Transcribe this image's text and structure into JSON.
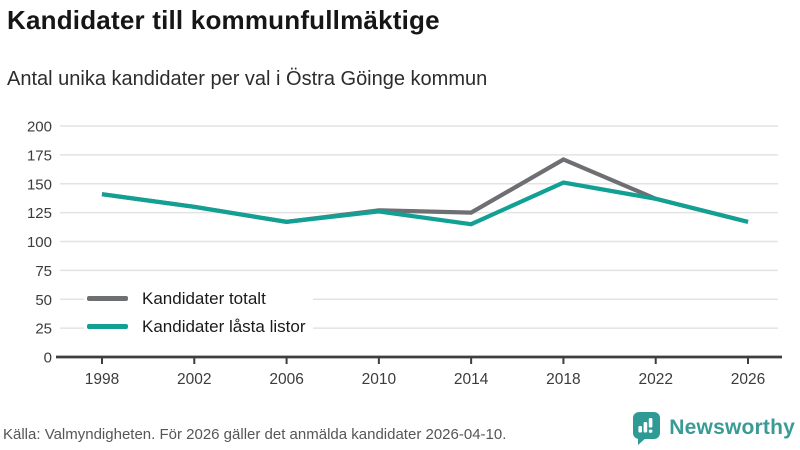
{
  "header": {
    "title": "Kandidater till kommunfullmäktige",
    "subtitle": "Antal unika kandidater per val i Östra Göinge kommun"
  },
  "chart_data": {
    "type": "line",
    "title": "Kandidater till kommunfullmäktige",
    "subtitle": "Antal unika kandidater per val i Östra Göinge kommun",
    "x": [
      1998,
      2002,
      2006,
      2010,
      2014,
      2018,
      2022,
      2026
    ],
    "series": [
      {
        "name": "Kandidater totalt",
        "color": "#6e6f72",
        "values": [
          141,
          130,
          117,
          127,
          125,
          171,
          137,
          117
        ]
      },
      {
        "name": "Kandidater låsta listor",
        "color": "#12a095",
        "values": [
          141,
          130,
          117,
          126,
          115,
          151,
          137,
          117
        ]
      }
    ],
    "xlabel": "",
    "ylabel": "",
    "ylim": [
      0,
      200
    ],
    "yticks": [
      0,
      25,
      50,
      75,
      100,
      125,
      150,
      175,
      200
    ],
    "grid": "horizontal",
    "legend_position": "inside-bottom-left"
  },
  "footer": {
    "source": "Källa: Valmyndigheten. För 2026 gäller det anmälda kandidater 2026-04-10.",
    "brand": "Newsworthy"
  },
  "colors": {
    "teal": "#12a095",
    "gray": "#6e6f72",
    "logo_teal": "#2f9a94",
    "gridline": "#e3e3e3",
    "axis": "#3e3e3e"
  }
}
